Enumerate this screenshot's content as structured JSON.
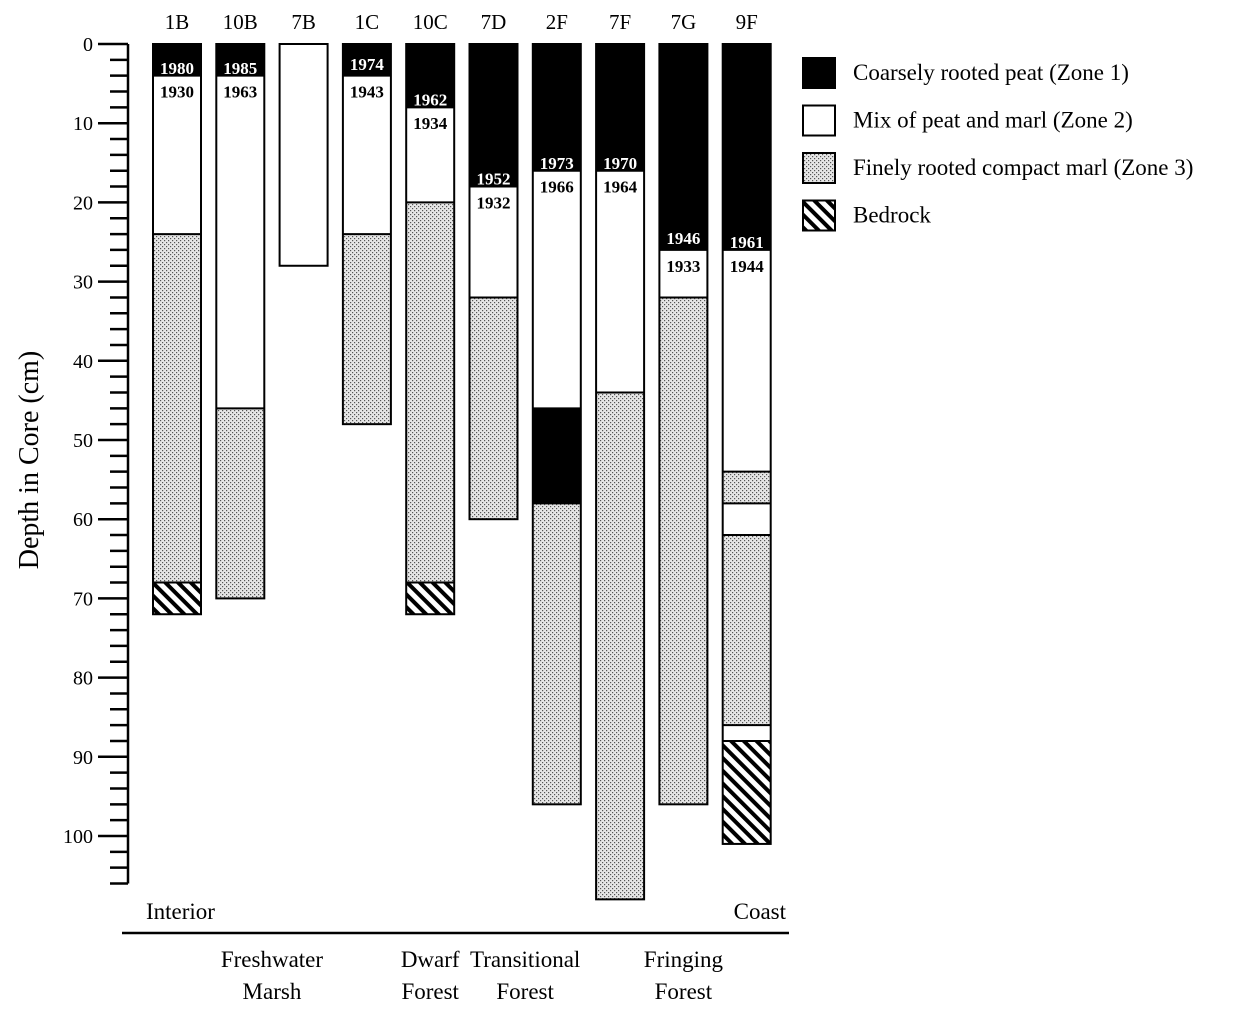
{
  "chart_data": {
    "type": "stacked-bar",
    "ylabel": "Depth in Core (cm)",
    "y_ticks": [
      "0",
      "10",
      "20",
      "30",
      "40",
      "50",
      "60",
      "70",
      "80",
      "90",
      "100"
    ],
    "ylim": [
      0,
      110
    ],
    "y_inverted": true,
    "legend_position": "top-right",
    "zones": [
      {
        "id": "z1",
        "label": "Coarsely rooted peat (Zone 1)",
        "fill": "black"
      },
      {
        "id": "z2",
        "label": "Mix of peat and marl (Zone 2)",
        "fill": "white"
      },
      {
        "id": "z3",
        "label": "Finely rooted compact marl (Zone 3)",
        "fill": "stipple"
      },
      {
        "id": "br",
        "label": "Bedrock",
        "fill": "hatch"
      }
    ],
    "cores": [
      {
        "name": "1B",
        "segments": [
          [
            "z1",
            0,
            4
          ],
          [
            "z2",
            4,
            24
          ],
          [
            "z3",
            24,
            68
          ],
          [
            "br",
            68,
            72
          ]
        ],
        "dates": [
          {
            "year": "1980",
            "depth": 3,
            "style": "dark"
          },
          {
            "year": "1930",
            "depth": 6,
            "style": "light"
          }
        ]
      },
      {
        "name": "10B",
        "segments": [
          [
            "z1",
            0,
            4
          ],
          [
            "z2",
            4,
            46
          ],
          [
            "z3",
            46,
            70
          ]
        ],
        "dates": [
          {
            "year": "1985",
            "depth": 3,
            "style": "dark"
          },
          {
            "year": "1963",
            "depth": 6,
            "style": "light"
          }
        ]
      },
      {
        "name": "7B",
        "segments": [
          [
            "z2",
            0,
            28
          ]
        ],
        "dates": []
      },
      {
        "name": "1C",
        "segments": [
          [
            "z1",
            0,
            4
          ],
          [
            "z2",
            4,
            24
          ],
          [
            "z3",
            24,
            48
          ]
        ],
        "dates": [
          {
            "year": "1974",
            "depth": 2.5,
            "style": "dark"
          },
          {
            "year": "1943",
            "depth": 6,
            "style": "light"
          }
        ]
      },
      {
        "name": "10C",
        "segments": [
          [
            "z1",
            0,
            8
          ],
          [
            "z2",
            8,
            20
          ],
          [
            "z3",
            20,
            68
          ],
          [
            "br",
            68,
            72
          ]
        ],
        "dates": [
          {
            "year": "1962",
            "depth": 7,
            "style": "dark"
          },
          {
            "year": "1934",
            "depth": 10,
            "style": "light"
          }
        ]
      },
      {
        "name": "7D",
        "segments": [
          [
            "z1",
            0,
            18
          ],
          [
            "z2",
            18,
            32
          ],
          [
            "z3",
            32,
            60
          ]
        ],
        "dates": [
          {
            "year": "1952",
            "depth": 17,
            "style": "dark"
          },
          {
            "year": "1932",
            "depth": 20,
            "style": "light"
          }
        ]
      },
      {
        "name": "2F",
        "segments": [
          [
            "z1",
            0,
            16
          ],
          [
            "z2",
            16,
            46
          ],
          [
            "z1",
            46,
            58
          ],
          [
            "z3",
            58,
            96
          ]
        ],
        "dates": [
          {
            "year": "1973",
            "depth": 15,
            "style": "dark"
          },
          {
            "year": "1966",
            "depth": 18,
            "style": "light"
          }
        ]
      },
      {
        "name": "7F",
        "segments": [
          [
            "z1",
            0,
            16
          ],
          [
            "z2",
            16,
            44
          ],
          [
            "z3",
            44,
            108
          ]
        ],
        "dates": [
          {
            "year": "1970",
            "depth": 15,
            "style": "dark"
          },
          {
            "year": "1964",
            "depth": 18,
            "style": "light"
          }
        ]
      },
      {
        "name": "7G",
        "segments": [
          [
            "z1",
            0,
            26
          ],
          [
            "z2",
            26,
            32
          ],
          [
            "z3",
            32,
            96
          ]
        ],
        "dates": [
          {
            "year": "1946",
            "depth": 24.5,
            "style": "dark"
          },
          {
            "year": "1933",
            "depth": 28,
            "style": "light"
          }
        ]
      },
      {
        "name": "9F",
        "segments": [
          [
            "z1",
            0,
            26
          ],
          [
            "z2",
            26,
            54
          ],
          [
            "z3",
            54,
            58
          ],
          [
            "z2",
            58,
            62
          ],
          [
            "z3",
            62,
            86
          ],
          [
            "z2",
            86,
            88
          ],
          [
            "br",
            88,
            101
          ]
        ],
        "dates": [
          {
            "year": "1961",
            "depth": 25,
            "style": "dark"
          },
          {
            "year": "1944",
            "depth": 28,
            "style": "light"
          }
        ]
      }
    ],
    "transect": {
      "left": "Interior",
      "right": "Coast"
    },
    "regions": [
      {
        "line1": "Freshwater",
        "line2": "Marsh",
        "cores": [
          "1B",
          "1C"
        ]
      },
      {
        "line1": "Dwarf",
        "line2": "Forest",
        "cores": [
          "10C",
          "10C"
        ]
      },
      {
        "line1": "Transitional",
        "line2": "Forest",
        "cores": [
          "7D",
          "2F"
        ]
      },
      {
        "line1": "Fringing",
        "line2": "Forest",
        "cores": [
          "7F",
          "9F"
        ]
      }
    ]
  }
}
